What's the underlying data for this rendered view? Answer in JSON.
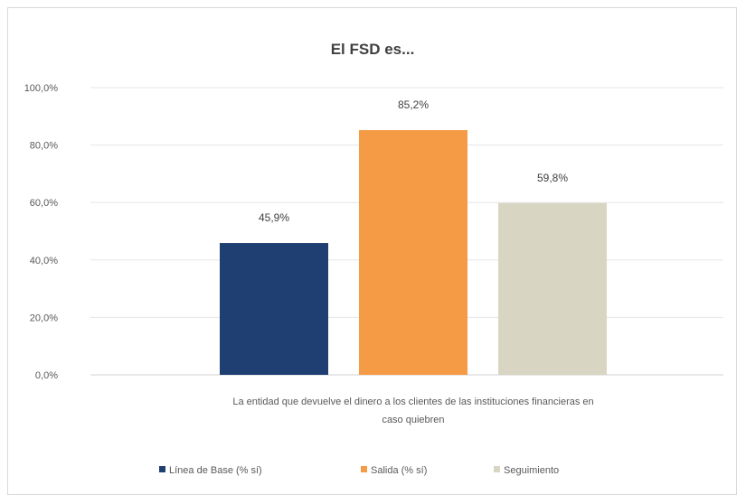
{
  "chart_data": {
    "type": "bar",
    "title": "El FSD es...",
    "categories": [
      "La entidad que devuelve el dinero a los clientes de las instituciones financieras en caso quiebren"
    ],
    "category_label_lines": [
      "La entidad que devuelve el dinero a los clientes de las instituciones financieras en",
      "caso quiebren"
    ],
    "series": [
      {
        "name": "Línea de Base (% sí)",
        "values": [
          45.9
        ],
        "label": "45,9%",
        "color": "#1f3f73"
      },
      {
        "name": "Salida (% sí)",
        "values": [
          85.2
        ],
        "label": "85,2%",
        "color": "#f59a45"
      },
      {
        "name": "Seguimiento",
        "values": [
          59.8
        ],
        "label": "59,8%",
        "color": "#d9d5c3"
      }
    ],
    "ylim": [
      0,
      100
    ],
    "yticks": [
      0,
      20,
      40,
      60,
      80,
      100
    ],
    "ytick_labels": [
      "0,0%",
      "20,0%",
      "40,0%",
      "60,0%",
      "80,0%",
      "100,0%"
    ],
    "grid": true,
    "legend_position": "bottom"
  }
}
